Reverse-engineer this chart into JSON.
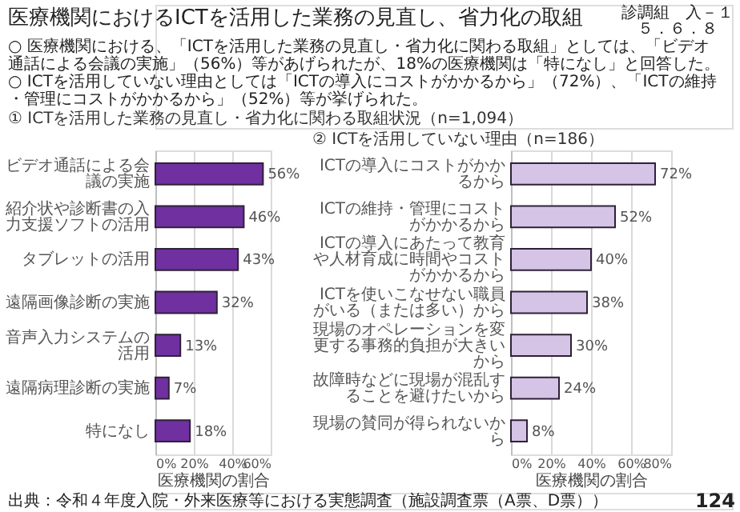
{
  "chart_data": [
    {
      "type": "bar",
      "orientation": "horizontal",
      "title": "医療機関におけるICTを活用した業務の見直し、省力化の取組",
      "subtitle": "① ICTを活用した業務の見直し・省力化に関わる取組状況（n=1,094）",
      "categories": [
        "ビデオ通話による会議の実施",
        "紹介状や診断書の入力支援ソフトの活用",
        "タブレットの活用",
        "遠隔画像診断の実施",
        "音声入力システムの活用",
        "遠隔病理診断の実施",
        "特になし"
      ],
      "values": [
        56,
        46,
        43,
        32,
        13,
        7,
        18
      ],
      "color": "#7030a0",
      "value_labels": [
        "56%",
        "46%",
        "43%",
        "32%",
        "13%",
        "7%",
        "18%"
      ],
      "xlabel": "医療機関の割合",
      "xlim": [
        0,
        60
      ],
      "xticks": [
        {
          "value": 0,
          "label": "0%"
        },
        {
          "value": 20,
          "label": "20%"
        },
        {
          "value": 40,
          "label": "40%"
        },
        {
          "value": 60,
          "label": "60%"
        }
      ],
      "grid": "x",
      "annotations": [
        "○ 医療機関における、「ICTを活用した業務の見直し・省力化に関わる取組」としては、「ビデオ通話による会議の実施」（56%）等があげられたが、18%の医療機関は「特になし」と回答した。",
        "○ ICTを活用していない理由としては「ICTの導入にコストがかかるから」（72%）、「ICTの維持・管理にコストがかかるから」（52%）等が挙げられた。",
        "診調組　入－１",
        "５．６．８",
        "出典：令和４年度入院・外来医療等における実態調査（施設調査票（A票、D票））",
        "124"
      ]
    },
    {
      "type": "bar",
      "orientation": "horizontal",
      "title": "② ICTを活用していない理由（n=186）",
      "categories": [
        "ICTの導入にコストがかかるから",
        "ICTの維持・管理にコストがかかるから",
        "ICTの導入にあたって教育や人材育成に時間やコストがかかるから",
        "ICTを使いこなせない職員がいる（または多い）から",
        "現場のオペレーションを変更する事務的負担が大きいから",
        "故障時などに現場が混乱することを避けたいから",
        "現場の賛同が得られないから"
      ],
      "values": [
        72,
        52,
        40,
        38,
        30,
        24,
        8
      ],
      "color": "#d5c4e6",
      "value_labels": [
        "72%",
        "52%",
        "40%",
        "38%",
        "30%",
        "24%",
        "8%"
      ],
      "xlabel": "医療機関の割合",
      "xlim": [
        0,
        80
      ],
      "xticks": [
        {
          "value": 0,
          "label": "0%"
        },
        {
          "value": 20,
          "label": "20%"
        },
        {
          "value": 40,
          "label": "40%"
        },
        {
          "value": 60,
          "label": "60%"
        },
        {
          "value": 80,
          "label": "80%"
        }
      ],
      "grid": "x"
    }
  ]
}
